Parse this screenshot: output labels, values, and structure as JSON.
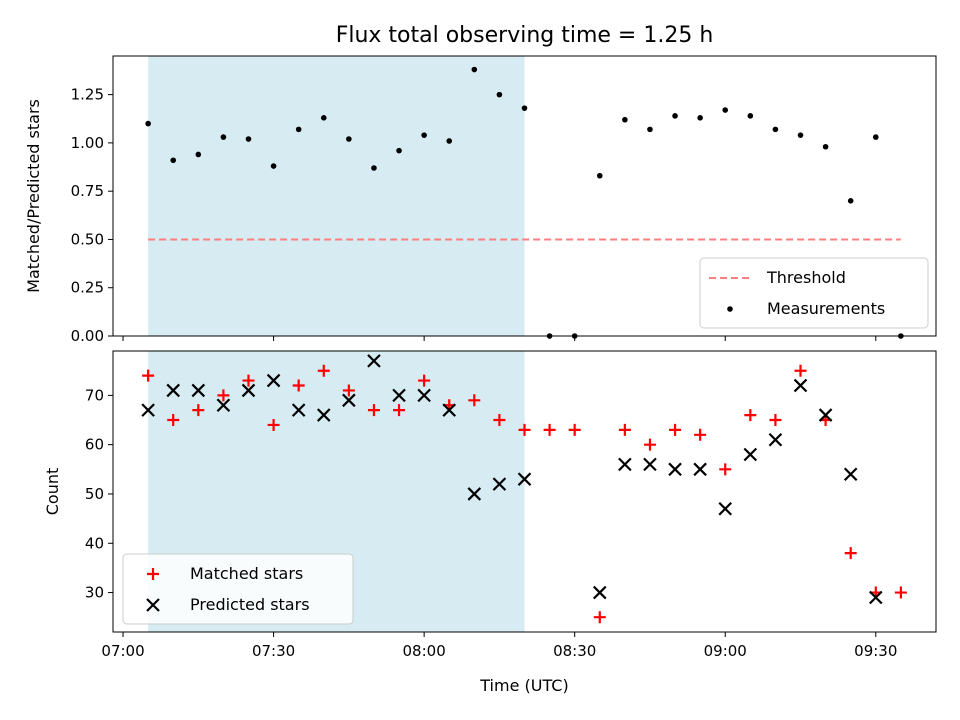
{
  "chart_data": {
    "title": "Flux total observing time = 1.25 h",
    "xlabel": "Time (UTC)",
    "x_ticks": [
      "07:00",
      "07:30",
      "08:00",
      "08:30",
      "09:00",
      "09:30"
    ],
    "shaded_interval": {
      "start": "07:05",
      "end": "08:20",
      "color": "#add8e6"
    },
    "panels": [
      {
        "type": "scatter",
        "ylabel": "Matched/Predicted stars",
        "ylim": [
          0,
          1.45
        ],
        "y_ticks": [
          "0.00",
          "0.25",
          "0.50",
          "0.75",
          "1.00",
          "1.25"
        ],
        "legend_location": "lower right",
        "series": [
          {
            "name": "Threshold",
            "kind": "dashed-line",
            "color": "#ff7f7f",
            "x": [
              "07:05",
              "09:35"
            ],
            "y": [
              0.5,
              0.5
            ]
          },
          {
            "name": "Measurements",
            "kind": "points",
            "color": "#000000",
            "x": [
              "07:05",
              "07:10",
              "07:15",
              "07:20",
              "07:25",
              "07:30",
              "07:35",
              "07:40",
              "07:45",
              "07:50",
              "07:55",
              "08:00",
              "08:05",
              "08:10",
              "08:15",
              "08:20",
              "08:25",
              "08:30",
              "08:35",
              "08:40",
              "08:45",
              "08:50",
              "08:55",
              "09:00",
              "09:05",
              "09:10",
              "09:15",
              "09:20",
              "09:25",
              "09:30",
              "09:35"
            ],
            "y": [
              1.1,
              0.91,
              0.94,
              1.03,
              1.02,
              0.88,
              1.07,
              1.13,
              1.02,
              0.87,
              0.96,
              1.04,
              1.01,
              1.38,
              1.25,
              1.18,
              0.0,
              0.0,
              0.83,
              1.12,
              1.07,
              1.14,
              1.13,
              1.17,
              1.14,
              1.07,
              1.04,
              0.98,
              0.7,
              1.03,
              0.0
            ]
          }
        ]
      },
      {
        "type": "scatter",
        "ylabel": "Count",
        "ylim": [
          22,
          79
        ],
        "y_ticks": [
          "30",
          "40",
          "50",
          "60",
          "70"
        ],
        "legend_location": "lower left",
        "series": [
          {
            "name": "Matched stars",
            "marker": "plus",
            "color": "#ff0000",
            "x": [
              "07:05",
              "07:10",
              "07:15",
              "07:20",
              "07:25",
              "07:30",
              "07:35",
              "07:40",
              "07:45",
              "07:50",
              "07:55",
              "08:00",
              "08:05",
              "08:10",
              "08:15",
              "08:20",
              "08:25",
              "08:30",
              "08:35",
              "08:40",
              "08:45",
              "08:50",
              "08:55",
              "09:00",
              "09:05",
              "09:10",
              "09:15",
              "09:20",
              "09:25",
              "09:30",
              "09:35"
            ],
            "y": [
              74,
              65,
              67,
              70,
              73,
              64,
              72,
              75,
              71,
              67,
              67,
              73,
              68,
              69,
              65,
              63,
              63,
              63,
              25,
              63,
              60,
              63,
              62,
              55,
              66,
              65,
              75,
              65,
              38,
              30,
              30
            ]
          },
          {
            "name": "Predicted stars",
            "marker": "x",
            "color": "#000000",
            "x": [
              "07:05",
              "07:10",
              "07:15",
              "07:20",
              "07:25",
              "07:30",
              "07:35",
              "07:40",
              "07:45",
              "07:50",
              "07:55",
              "08:00",
              "08:05",
              "08:10",
              "08:15",
              "08:20",
              "08:35",
              "08:40",
              "08:45",
              "08:50",
              "08:55",
              "09:00",
              "09:05",
              "09:10",
              "09:15",
              "09:20",
              "09:25",
              "09:30"
            ],
            "y": [
              67,
              71,
              71,
              68,
              71,
              73,
              67,
              66,
              69,
              77,
              70,
              70,
              67,
              50,
              52,
              53,
              30,
              56,
              56,
              55,
              55,
              47,
              58,
              61,
              72,
              66,
              54,
              29
            ]
          }
        ]
      }
    ]
  }
}
